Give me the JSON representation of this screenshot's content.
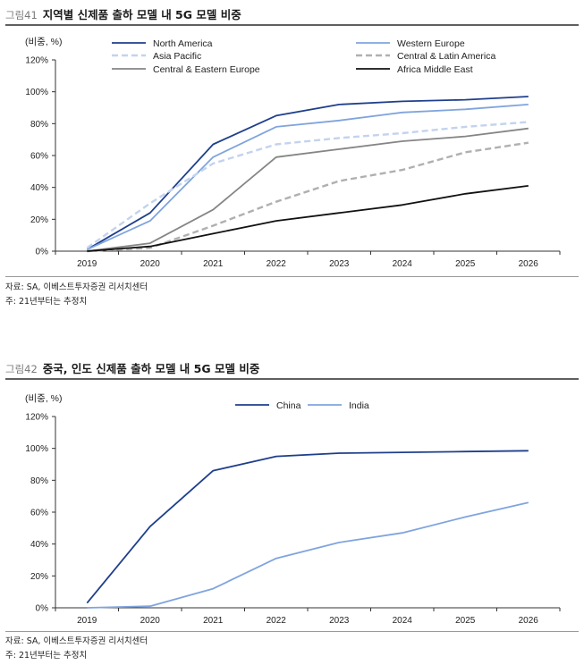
{
  "figures": [
    {
      "fig_no": "그림41",
      "title": "지역별 신제품 출하 모델 내 5G 모델 비중",
      "source": "자료: SA, 이베스트투자증권 리서치센터",
      "note": "주: 21년부터는 추정치"
    },
    {
      "fig_no": "그림42",
      "title": "중국, 인도 신제품 출하 모델 내 5G 모델 비중",
      "source": "자료: SA, 이베스트투자증권 리서치센터",
      "note": "주: 21년부터는 추정치"
    }
  ],
  "chart_data": [
    {
      "type": "line",
      "title": "지역별 신제품 출하 모델 내 5G 모델 비중",
      "unit_label": "(비중, %)",
      "xlabel": "",
      "ylabel": "(비중, %)",
      "x": [
        "2019",
        "2020",
        "2021",
        "2022",
        "2023",
        "2024",
        "2025",
        "2026"
      ],
      "ylim": [
        0,
        120
      ],
      "yticks": [
        "0%",
        "20%",
        "40%",
        "60%",
        "80%",
        "100%",
        "120%"
      ],
      "legend": "top",
      "series": [
        {
          "name": "North America",
          "values": [
            1,
            24,
            67,
            85,
            92,
            94,
            95,
            97
          ],
          "color": "#1f3f8c",
          "dash": "solid",
          "width": 1.8
        },
        {
          "name": "Western Europe",
          "values": [
            1,
            19,
            59,
            78,
            82,
            87,
            89,
            92
          ],
          "color": "#7fa4de",
          "dash": "solid",
          "width": 1.8
        },
        {
          "name": "Asia Pacific",
          "values": [
            2,
            30,
            55,
            67,
            71,
            74,
            78,
            81
          ],
          "color": "#c3d3ee",
          "dash": "dashed",
          "width": 2.4
        },
        {
          "name": "Central & Latin America",
          "values": [
            0,
            2,
            16,
            31,
            44,
            51,
            62,
            68
          ],
          "color": "#b0b0b0",
          "dash": "dashed",
          "width": 2.4
        },
        {
          "name": "Central & Eastern Europe",
          "values": [
            0,
            5,
            26,
            59,
            64,
            69,
            72,
            77
          ],
          "color": "#858585",
          "dash": "solid",
          "width": 1.8
        },
        {
          "name": "Africa Middle East",
          "values": [
            0,
            3,
            11,
            19,
            24,
            29,
            36,
            41
          ],
          "color": "#111111",
          "dash": "solid",
          "width": 1.8
        }
      ]
    },
    {
      "type": "line",
      "title": "중국, 인도 신제품 출하 모델 내 5G 모델 비중",
      "unit_label": "(비중, %)",
      "xlabel": "",
      "ylabel": "(비중, %)",
      "x": [
        "2019",
        "2020",
        "2021",
        "2022",
        "2023",
        "2024",
        "2025",
        "2026"
      ],
      "ylim": [
        0,
        120
      ],
      "yticks": [
        "0%",
        "20%",
        "40%",
        "60%",
        "80%",
        "100%",
        "120%"
      ],
      "legend": "top",
      "series": [
        {
          "name": "China",
          "values": [
            3,
            51,
            86,
            95,
            97,
            97.5,
            98,
            98.5
          ],
          "color": "#1f3f8c",
          "dash": "solid",
          "width": 1.8
        },
        {
          "name": "India",
          "values": [
            0,
            1,
            12,
            31,
            41,
            47,
            57,
            66
          ],
          "color": "#7fa4de",
          "dash": "solid",
          "width": 1.8
        }
      ]
    }
  ]
}
